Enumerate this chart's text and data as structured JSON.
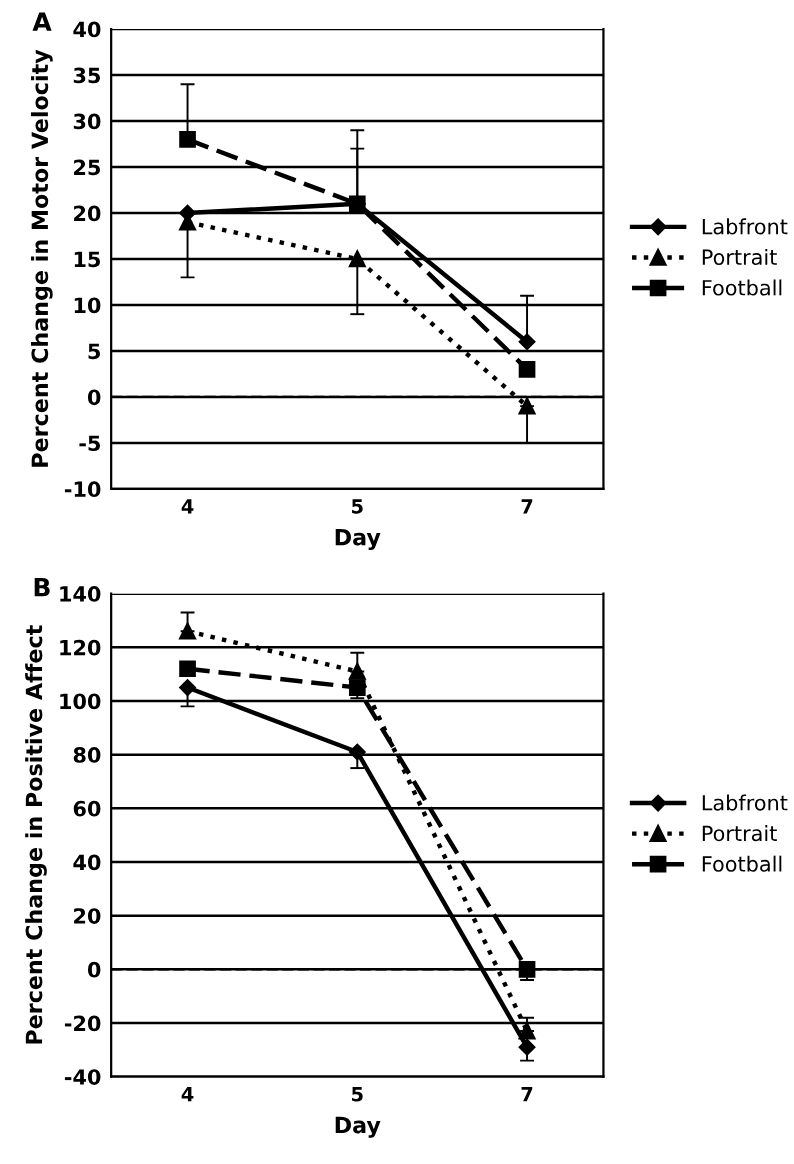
{
  "chart_data": [
    {
      "type": "line",
      "title": "A",
      "xlabel": "Day",
      "ylabel": "Percent Change in Motor Velocity",
      "categories": [
        "4",
        "5",
        "7"
      ],
      "series": [
        {
          "name": "Labfront",
          "color": "#000000",
          "values": [
            20,
            21,
            6
          ],
          "errors": [
            [
              13,
              20
            ],
            [
              21,
              27
            ],
            [
              6,
              11
            ]
          ],
          "marker": "diamond",
          "line_style": "solid"
        },
        {
          "name": "Portrait",
          "color": "#000000",
          "values": [
            19,
            15,
            -1
          ],
          "errors": [
            null,
            [
              9,
              15
            ],
            [
              -5,
              -1
            ]
          ],
          "marker": "triangle",
          "line_style": "dotted"
        },
        {
          "name": "Football",
          "color": "#000000",
          "values": [
            28,
            21,
            3
          ],
          "errors": [
            [
              28,
              34
            ],
            [
              21,
              29
            ],
            null
          ],
          "marker": "square",
          "line_style": "dashed"
        }
      ],
      "ylim": [
        -10,
        40
      ],
      "yticks": [
        -10,
        -5,
        0,
        5,
        10,
        15,
        20,
        25,
        30,
        35,
        40
      ],
      "grid": "y",
      "legend": "right",
      "ref_lines": [
        {
          "axis": "y",
          "value": 0,
          "color": "#000000",
          "line_style": "dashed"
        }
      ]
    },
    {
      "type": "line",
      "title": "B",
      "xlabel": "Day",
      "ylabel": "Percent Change in Positive Affect",
      "categories": [
        "4",
        "5",
        "7"
      ],
      "series": [
        {
          "name": "Labfront",
          "color": "#000000",
          "values": [
            105,
            81,
            -29
          ],
          "errors": [
            [
              98,
              105
            ],
            [
              75,
              81
            ],
            [
              -34,
              -29
            ]
          ],
          "marker": "diamond",
          "line_style": "solid"
        },
        {
          "name": "Portrait",
          "color": "#000000",
          "values": [
            126,
            111,
            -23
          ],
          "errors": [
            [
              126,
              133
            ],
            [
              111,
              118
            ],
            [
              -23,
              -18
            ]
          ],
          "marker": "triangle",
          "line_style": "dotted"
        },
        {
          "name": "Football",
          "color": "#000000",
          "values": [
            112,
            105,
            0
          ],
          "errors": [
            null,
            [
              101,
              105
            ],
            [
              -4,
              0
            ]
          ],
          "marker": "square",
          "line_style": "dashed"
        }
      ],
      "ylim": [
        -40,
        140
      ],
      "yticks": [
        -40,
        -20,
        0,
        20,
        40,
        60,
        80,
        100,
        120,
        140
      ],
      "grid": "y",
      "legend": "right",
      "ref_lines": [
        {
          "axis": "y",
          "value": 0,
          "color": "#000000",
          "line_style": "dashed"
        }
      ]
    }
  ]
}
